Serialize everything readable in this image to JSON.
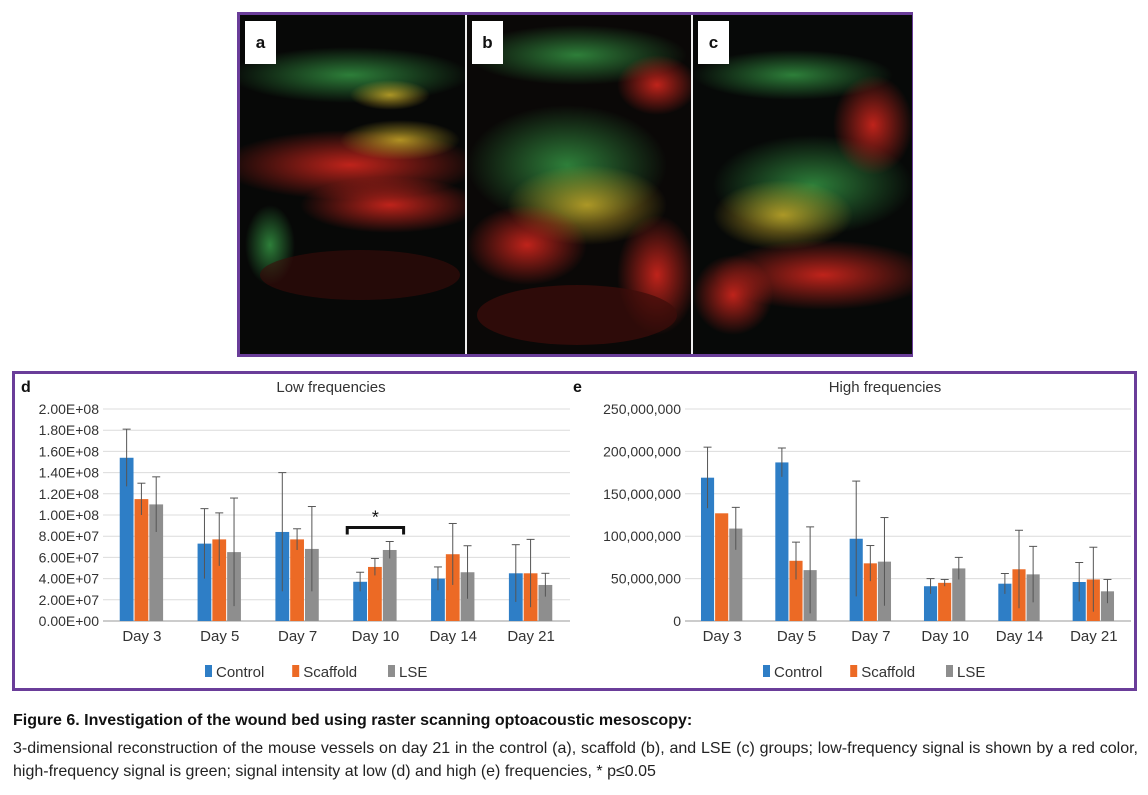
{
  "panels": [
    {
      "label": "a"
    },
    {
      "label": "b"
    },
    {
      "label": "c"
    }
  ],
  "colors": {
    "control": "#2e7ec6",
    "scaffold": "#ec6a25",
    "lse": "#8e8e8e",
    "frame": "#6a3d99"
  },
  "chart_data": [
    {
      "type": "bar",
      "panel_label": "d",
      "title": "Low frequencies",
      "categories": [
        "Day 3",
        "Day 5",
        "Day 7",
        "Day 10",
        "Day 14",
        "Day 21"
      ],
      "ylim": [
        0,
        200000000
      ],
      "y_ticks": [
        "0.00E+00",
        "2.00E+07",
        "4.00E+07",
        "6.00E+07",
        "8.00E+07",
        "1.00E+08",
        "1.20E+08",
        "1.40E+08",
        "1.60E+08",
        "1.80E+08",
        "2.00E+08"
      ],
      "grid": true,
      "legend": "bottom",
      "series": [
        {
          "name": "Control",
          "values": [
            154000000,
            73000000,
            84000000,
            37000000,
            40000000,
            45000000
          ],
          "errors": [
            27000000,
            33000000,
            56000000,
            9000000,
            11000000,
            27000000
          ]
        },
        {
          "name": "Scaffold",
          "values": [
            115000000,
            77000000,
            77000000,
            51000000,
            63000000,
            45000000
          ],
          "errors": [
            15000000,
            25000000,
            10000000,
            8000000,
            29000000,
            32000000
          ]
        },
        {
          "name": "LSE",
          "values": [
            110000000,
            65000000,
            68000000,
            67000000,
            46000000,
            34000000
          ],
          "errors": [
            26000000,
            51000000,
            40000000,
            8000000,
            25000000,
            11000000
          ]
        }
      ],
      "annotation": {
        "text": "*",
        "category_index": 3
      }
    },
    {
      "type": "bar",
      "panel_label": "e",
      "title": "High frequencies",
      "categories": [
        "Day 3",
        "Day 5",
        "Day 7",
        "Day 10",
        "Day 14",
        "Day 21"
      ],
      "ylim": [
        0,
        250000000
      ],
      "y_ticks": [
        "0",
        "50,000,000",
        "100,000,000",
        "150,000,000",
        "200,000,000",
        "250,000,000"
      ],
      "grid": true,
      "legend": "bottom",
      "series": [
        {
          "name": "Control",
          "values": [
            169000000,
            187000000,
            97000000,
            41000000,
            44000000,
            46000000
          ],
          "errors": [
            36000000,
            17000000,
            68000000,
            9000000,
            12000000,
            23000000
          ]
        },
        {
          "name": "Scaffold",
          "values": [
            127000000,
            71000000,
            68000000,
            45000000,
            61000000,
            49000000
          ],
          "errors": [
            0,
            22000000,
            21000000,
            4000000,
            46000000,
            38000000
          ]
        },
        {
          "name": "LSE",
          "values": [
            109000000,
            60000000,
            70000000,
            62000000,
            55000000,
            35000000
          ],
          "errors": [
            25000000,
            51000000,
            52000000,
            13000000,
            33000000,
            14000000
          ]
        }
      ]
    }
  ],
  "caption": {
    "title": "Figure 6. Investigation of the wound bed using raster scanning optoacoustic mesoscopy:",
    "body": "3-dimensional reconstruction of the mouse vessels on day 21 in the control (a), scaffold (b), and LSE (c) groups; low-frequency signal is shown by a red color, high-frequency signal is green; signal intensity at low (d) and high (e) frequencies, * p≤0.05"
  }
}
